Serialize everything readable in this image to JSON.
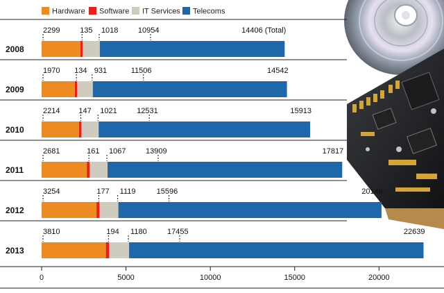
{
  "chart_data": {
    "type": "bar",
    "stacked": true,
    "orientation": "horizontal",
    "categories": [
      "2008",
      "2009",
      "2010",
      "2011",
      "2012",
      "2013"
    ],
    "series": [
      {
        "name": "Hardware",
        "color": "#ee8a22",
        "values": [
          2299,
          1970,
          2214,
          2681,
          3254,
          3810
        ]
      },
      {
        "name": "Software",
        "color": "#e8201c",
        "values": [
          135,
          134,
          147,
          161,
          177,
          194
        ]
      },
      {
        "name": "IT Services",
        "color": "#cfcbbf",
        "values": [
          1018,
          931,
          1021,
          1067,
          1119,
          1180
        ]
      },
      {
        "name": "Telecoms",
        "color": "#1d67aa",
        "values": [
          10954,
          11506,
          12531,
          13909,
          15596,
          17455
        ]
      }
    ],
    "totals": [
      14406,
      14542,
      15913,
      17817,
      20146,
      22639
    ],
    "value_labels": [
      [
        "2299",
        "135",
        "1018",
        "10954",
        "14406 (Total)"
      ],
      [
        "1970",
        "134",
        "931",
        "11506",
        "14542"
      ],
      [
        "2214",
        "147",
        "1021",
        "12531",
        "15913"
      ],
      [
        "2681",
        "161",
        "1067",
        "13909",
        "17817"
      ],
      [
        "3254",
        "177",
        "1119",
        "15596",
        "20146"
      ],
      [
        "3810",
        "194",
        "1180",
        "17455",
        "22639"
      ]
    ],
    "xlim": [
      0,
      22700
    ],
    "xticks": [
      0,
      5000,
      10000,
      15000,
      20000
    ],
    "xtick_labels": [
      "0",
      "5000",
      "10000",
      "15000",
      "20000"
    ],
    "legend_position": "top-left",
    "grid": false
  },
  "decoration": {
    "image": "cd-and-circuit-board"
  }
}
